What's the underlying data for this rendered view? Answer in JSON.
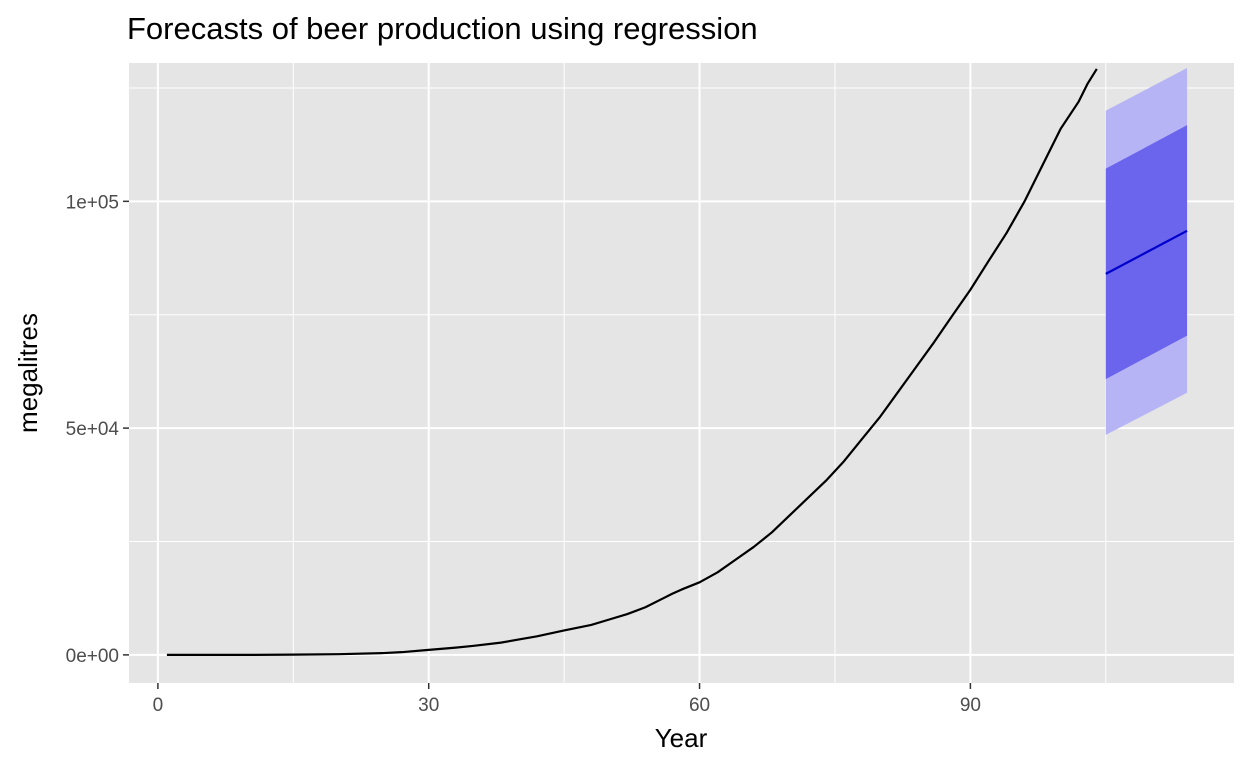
{
  "chart_data": {
    "type": "line",
    "title": "Forecasts of beer production using regression",
    "xlabel": "Year",
    "ylabel": "megalitres",
    "xlim": [
      -3.2,
      119.2
    ],
    "ylim": [
      -6200,
      130500
    ],
    "x_ticks": [
      0,
      30,
      60,
      90
    ],
    "x_tick_labels": [
      "0",
      "30",
      "60",
      "90"
    ],
    "y_ticks": [
      0,
      50000,
      100000
    ],
    "y_tick_labels": [
      "0e+00",
      "5e+04",
      "1e+05"
    ],
    "grid": true,
    "series": [
      {
        "role": "observed",
        "color": "#000000",
        "x": [
          1,
          5,
          10,
          15,
          20,
          25,
          27,
          30,
          33,
          35,
          38,
          40,
          42,
          45,
          48,
          50,
          52,
          54,
          56,
          57,
          58,
          60,
          62,
          64,
          66,
          68,
          70,
          72,
          74,
          76,
          78,
          80,
          82,
          84,
          86,
          88,
          90,
          92,
          94,
          96,
          98,
          100,
          102,
          103,
          104
        ],
        "y": [
          0,
          0,
          0,
          50,
          150,
          400,
          600,
          1100,
          1600,
          2000,
          2700,
          3400,
          4100,
          5400,
          6600,
          7800,
          9000,
          10500,
          12500,
          13500,
          14400,
          16000,
          18200,
          21000,
          23800,
          27000,
          30800,
          34600,
          38400,
          42700,
          47600,
          52500,
          58000,
          63500,
          69000,
          74800,
          80500,
          86800,
          93000,
          100000,
          108000,
          116000,
          122000,
          126000,
          129200
        ]
      },
      {
        "role": "forecast",
        "color": "#0000cc",
        "x": [
          105,
          114
        ],
        "y": [
          84000,
          93500
        ]
      }
    ],
    "intervals": [
      {
        "level": "95",
        "color": "#b7b4f5",
        "x": [
          105,
          114
        ],
        "lower": [
          48500,
          57800
        ],
        "upper": [
          120000,
          129400
        ]
      },
      {
        "level": "80",
        "color": "#6b64ed",
        "x": [
          105,
          114
        ],
        "lower": [
          60800,
          70400
        ],
        "upper": [
          107200,
          116800
        ]
      }
    ]
  }
}
